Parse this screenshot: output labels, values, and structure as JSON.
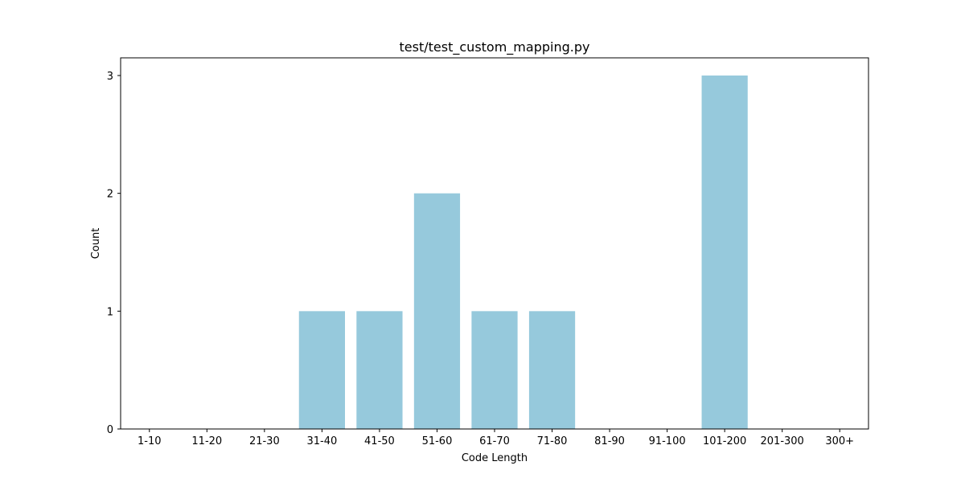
{
  "chart_data": {
    "type": "bar",
    "title": "test/test_custom_mapping.py",
    "xlabel": "Code Length",
    "ylabel": "Count",
    "categories": [
      "1-10",
      "11-20",
      "21-30",
      "31-40",
      "41-50",
      "51-60",
      "61-70",
      "71-80",
      "81-90",
      "91-100",
      "101-200",
      "201-300",
      "300+"
    ],
    "values": [
      0,
      0,
      0,
      1,
      1,
      2,
      1,
      1,
      0,
      0,
      3,
      0,
      0
    ],
    "ylim": [
      0,
      3.15
    ],
    "yticks": [
      0,
      1,
      2,
      3
    ],
    "bar_color": "#96c9dc",
    "grid": false,
    "legend": "none"
  }
}
